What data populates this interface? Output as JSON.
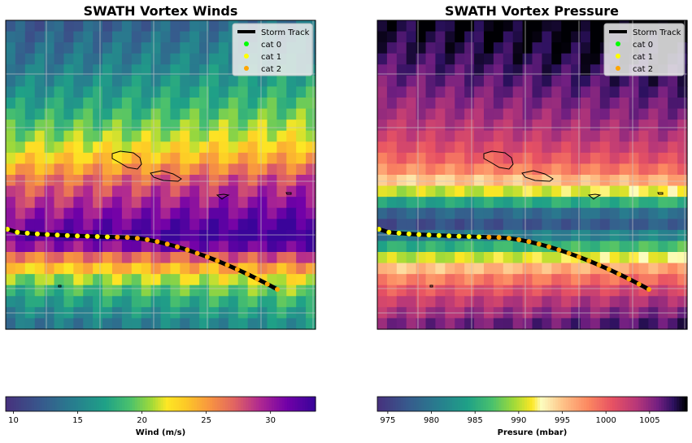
{
  "chart_data": [
    {
      "type": "heatmap",
      "title": "SWATH Vortex Winds",
      "colorbar": {
        "label": "Wind (m/s)",
        "ticks": [
          10,
          15,
          20,
          25,
          30
        ],
        "range": [
          9.4,
          33.5
        ],
        "colormap": "viridis-yellow-plasma_r"
      },
      "row_values_top_to_bottom": [
        12,
        12.6,
        13.2,
        13.8,
        14.5,
        15.2,
        16,
        16.8,
        17.7,
        18.8,
        19.9,
        21.3,
        22.8,
        24.6,
        26.3,
        27.5,
        28.6,
        29.8,
        31,
        32,
        30,
        26,
        23,
        20,
        18,
        16.5,
        15.2,
        14
      ],
      "legend": {
        "position": "top-right",
        "entries": [
          {
            "label": "Storm Track",
            "color": "#000000",
            "marker": "line"
          },
          {
            "label": "cat 0",
            "color": "#00ff00",
            "marker": "dot"
          },
          {
            "label": "cat 1",
            "color": "#ffff00",
            "marker": "dot"
          },
          {
            "label": "cat 2",
            "color": "#ffa500",
            "marker": "dot"
          }
        ]
      },
      "track_categories": [
        "cat 1",
        "cat 2"
      ]
    },
    {
      "type": "heatmap",
      "title": "SWATH Vortex Pressure",
      "colorbar": {
        "label": "Presure (mbar)",
        "ticks": [
          975,
          980,
          985,
          990,
          995,
          1000,
          1005
        ],
        "range": [
          973.8,
          1009.3
        ],
        "colormap": "viridis-yellow-magma"
      },
      "row_values_top_to_bottom": [
        1008.5,
        1008,
        1007.6,
        1007.1,
        1006.6,
        1006,
        1005.3,
        1004.6,
        1003.9,
        1003.1,
        1002.2,
        1001,
        999.5,
        997.5,
        994.5,
        990,
        984,
        978,
        976,
        980,
        985,
        990,
        995,
        998,
        1000.5,
        1002.5,
        1004,
        1005.5
      ],
      "legend": {
        "position": "top-right",
        "entries": [
          {
            "label": "Storm Track",
            "color": "#000000",
            "marker": "line"
          },
          {
            "label": "cat 0",
            "color": "#00ff00",
            "marker": "dot"
          },
          {
            "label": "cat 1",
            "color": "#ffff00",
            "marker": "dot"
          },
          {
            "label": "cat 2",
            "color": "#ffa500",
            "marker": "dot"
          }
        ]
      },
      "track_categories": [
        "cat 1",
        "cat 2"
      ]
    }
  ]
}
